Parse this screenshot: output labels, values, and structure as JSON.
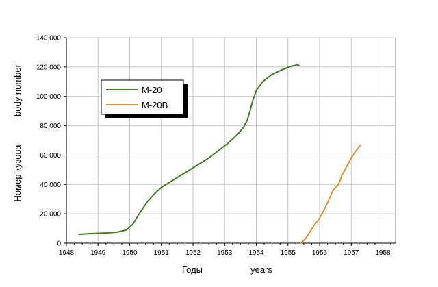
{
  "chart_data": {
    "type": "line",
    "xlim": [
      1948,
      1958.4
    ],
    "ylim": [
      0,
      140000
    ],
    "x_ticks": [
      1948,
      1949,
      1950,
      1951,
      1952,
      1953,
      1954,
      1955,
      1956,
      1957,
      1958
    ],
    "x_tick_labels": [
      "1948",
      "1949",
      "1950",
      "1951",
      "1952",
      "1953",
      "1954",
      "1955",
      "1956",
      "1957",
      "1958"
    ],
    "y_ticks": [
      0,
      20000,
      40000,
      60000,
      80000,
      100000,
      120000,
      140000
    ],
    "y_tick_labels": [
      "0",
      "20 000",
      "40 000",
      "60 000",
      "80 000",
      "100 000",
      "120 000",
      "140 000"
    ],
    "grid": true,
    "legend_position": "upper-left",
    "ylabel_lines": [
      "body number",
      "Номер кузова"
    ],
    "xlabel_lines": [
      "Годы",
      "years"
    ],
    "series": [
      {
        "name": "M-20",
        "color": "#3a7d1e",
        "x": [
          1948.4,
          1948.7,
          1949.0,
          1949.3,
          1949.6,
          1949.9,
          1950.1,
          1950.3,
          1950.55,
          1950.8,
          1951.0,
          1951.3,
          1951.6,
          1951.9,
          1952.2,
          1952.5,
          1952.8,
          1953.1,
          1953.4,
          1953.6,
          1953.72,
          1953.8,
          1953.9,
          1954.0,
          1954.2,
          1954.5,
          1954.8,
          1955.1,
          1955.3,
          1955.35
        ],
        "y": [
          6000,
          6500,
          6700,
          7000,
          7500,
          9000,
          13000,
          20000,
          28000,
          34000,
          38000,
          42000,
          46000,
          50000,
          54000,
          58000,
          63000,
          68000,
          74000,
          79000,
          84000,
          90000,
          98000,
          104000,
          110000,
          115000,
          118000,
          120500,
          121500,
          121000
        ]
      },
      {
        "name": "M-20B",
        "color": "#e0902c",
        "x": [
          1955.4,
          1955.55,
          1955.7,
          1955.85,
          1956.0,
          1956.15,
          1956.3,
          1956.4,
          1956.5,
          1956.6,
          1956.7,
          1956.85,
          1957.0,
          1957.15,
          1957.3
        ],
        "y": [
          0,
          3000,
          8000,
          13000,
          17000,
          23000,
          30000,
          35000,
          38000,
          40000,
          46000,
          52000,
          58000,
          63000,
          67000
        ]
      }
    ]
  }
}
